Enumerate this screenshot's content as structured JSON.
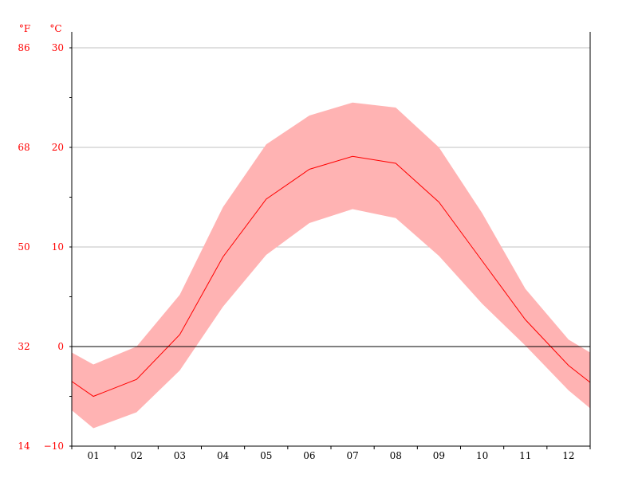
{
  "chart_data": {
    "type": "area",
    "title": "",
    "xlabel": "",
    "ylabel": "",
    "y_unit_left_outer": "°F",
    "y_unit_left_inner": "°C",
    "categories": [
      "01",
      "02",
      "03",
      "04",
      "05",
      "06",
      "07",
      "08",
      "09",
      "10",
      "11",
      "12"
    ],
    "ylim": [
      -10,
      30
    ],
    "y_ticks_c": [
      {
        "value": -10,
        "label": "−10"
      },
      {
        "value": 0,
        "label": "0"
      },
      {
        "value": 10,
        "label": "10"
      },
      {
        "value": 20,
        "label": "20"
      },
      {
        "value": 30,
        "label": "30"
      }
    ],
    "y_ticks_f": [
      "14",
      "32",
      "50",
      "68",
      "86"
    ],
    "gridlines": [
      10,
      20,
      30
    ],
    "zero_line": 0,
    "series": [
      {
        "role": "mean",
        "values": [
          -5.0,
          -3.3,
          1.2,
          9.0,
          14.8,
          17.8,
          19.1,
          18.4,
          14.5,
          8.6,
          2.7,
          -1.9
        ]
      },
      {
        "role": "max",
        "values": [
          -1.8,
          0.0,
          5.2,
          14.0,
          20.3,
          23.2,
          24.5,
          24.0,
          20.0,
          13.4,
          5.8,
          0.7
        ]
      },
      {
        "role": "min",
        "values": [
          -8.2,
          -6.6,
          -2.4,
          4.0,
          9.2,
          12.4,
          13.8,
          12.9,
          9.1,
          4.3,
          0.1,
          -4.4
        ]
      }
    ],
    "edge_values": {
      "mean": [
        -3.5,
        -3.6
      ],
      "max": [
        -0.6,
        -0.6
      ],
      "min": [
        -6.4,
        -6.2
      ]
    },
    "colors": {
      "band": "#ffb3b3",
      "line": "#ff0000",
      "labels": "#ff0000",
      "grid": "#c0c0c0",
      "axis": "#000000"
    }
  }
}
